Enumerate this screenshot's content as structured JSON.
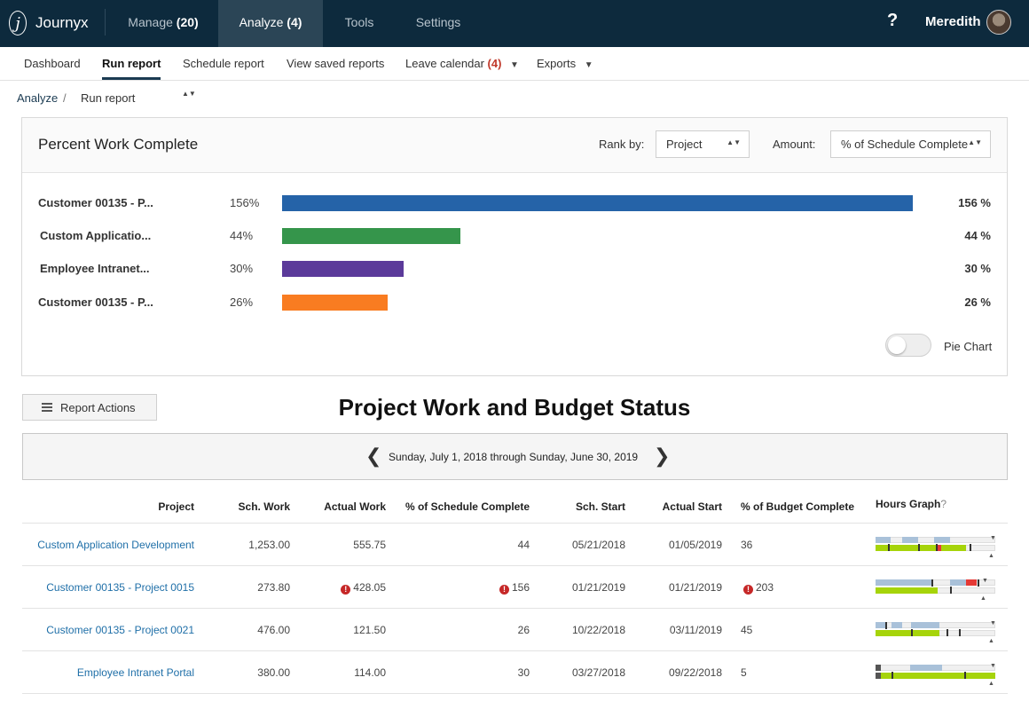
{
  "topnav": {
    "brand": "Journyx",
    "logo_glyph": "j",
    "tabs": [
      {
        "label": "Manage",
        "count": "(20)"
      },
      {
        "label": "Analyze",
        "count": "(4)"
      },
      {
        "label": "Tools",
        "count": ""
      },
      {
        "label": "Settings",
        "count": ""
      }
    ],
    "help": "?",
    "user": "Meredith"
  },
  "subnav": {
    "items": [
      {
        "label": "Dashboard"
      },
      {
        "label": "Run report"
      },
      {
        "label": "Schedule report"
      },
      {
        "label": "View saved reports"
      },
      {
        "label": "Leave calendar",
        "count": "(4)"
      },
      {
        "label": "Exports"
      }
    ],
    "caret": "▼"
  },
  "breadcrumb": {
    "root": "Analyze",
    "separator": "/",
    "current": "Run report",
    "updown": "▲▼"
  },
  "chart_panel": {
    "title": "Percent Work Complete",
    "rank_label": "Rank by:",
    "rank_value": "Project",
    "amount_label": "Amount:",
    "amount_value": "% of Schedule Complete",
    "updown": "▲▼",
    "pie_toggle_label": "Pie Chart",
    "pie_toggle_on": false
  },
  "chart_data": {
    "type": "bar",
    "orientation": "horizontal",
    "categories": [
      "Customer 00135 - P...",
      "Custom Applicatio...",
      "Employee Intranet...",
      "Customer 00135 - P..."
    ],
    "values": [
      156,
      44,
      30,
      26
    ],
    "left_labels": [
      "156%",
      "44%",
      "30%",
      "26%"
    ],
    "right_labels": [
      "156 %",
      "44 %",
      "30 %",
      "26 %"
    ],
    "colors": [
      "#2563a8",
      "#35954b",
      "#5b3a9a",
      "#f97c21"
    ],
    "xlim": [
      0,
      156
    ],
    "grid": false
  },
  "report": {
    "actions_label": "Report Actions",
    "title": "Project Work and Budget Status",
    "date_range": "Sunday, July 1, 2018 through Sunday, June 30, 2019",
    "prev": "❮",
    "next": "❯"
  },
  "table": {
    "headers": {
      "project": "Project",
      "sch_work": "Sch. Work",
      "actual_work": "Actual Work",
      "pct_schedule": "% of Schedule Complete",
      "sch_start": "Sch. Start",
      "actual_start": "Actual Start",
      "pct_budget": "% of Budget Complete",
      "hours_graph": "Hours Graph",
      "hours_graph_help": "?"
    },
    "warn_glyph": "!",
    "rows": [
      {
        "project": "Custom Application Development",
        "sch_work": "1,253.00",
        "actual_work": "555.75",
        "actual_work_warn": false,
        "pct_schedule": "44",
        "pct_schedule_warn": false,
        "sch_start": "05/21/2018",
        "actual_start": "01/05/2019",
        "pct_budget": "36",
        "pct_budget_warn": false
      },
      {
        "project": "Customer 00135 - Project 0015",
        "sch_work": "273.80",
        "actual_work": "428.05",
        "actual_work_warn": true,
        "pct_schedule": "156",
        "pct_schedule_warn": true,
        "sch_start": "01/21/2019",
        "actual_start": "01/21/2019",
        "pct_budget": "203",
        "pct_budget_warn": true
      },
      {
        "project": "Customer 00135 - Project 0021",
        "sch_work": "476.00",
        "actual_work": "121.50",
        "actual_work_warn": false,
        "pct_schedule": "26",
        "pct_schedule_warn": false,
        "sch_start": "10/22/2018",
        "actual_start": "03/11/2019",
        "pct_budget": "45",
        "pct_budget_warn": false
      },
      {
        "project": "Employee Intranet Portal",
        "sch_work": "380.00",
        "actual_work": "114.00",
        "actual_work_warn": false,
        "pct_schedule": "30",
        "pct_schedule_warn": false,
        "sch_start": "03/27/2018",
        "actual_start": "09/22/2018",
        "pct_budget": "5",
        "pct_budget_warn": false
      }
    ]
  },
  "colors": {
    "topbar": "#0d2a3d",
    "link": "#1f6fa8",
    "warning": "#c62828",
    "graph_scheduled": "#a9c1d9",
    "graph_actual": "#a6d40a",
    "graph_over": "#e53935"
  }
}
